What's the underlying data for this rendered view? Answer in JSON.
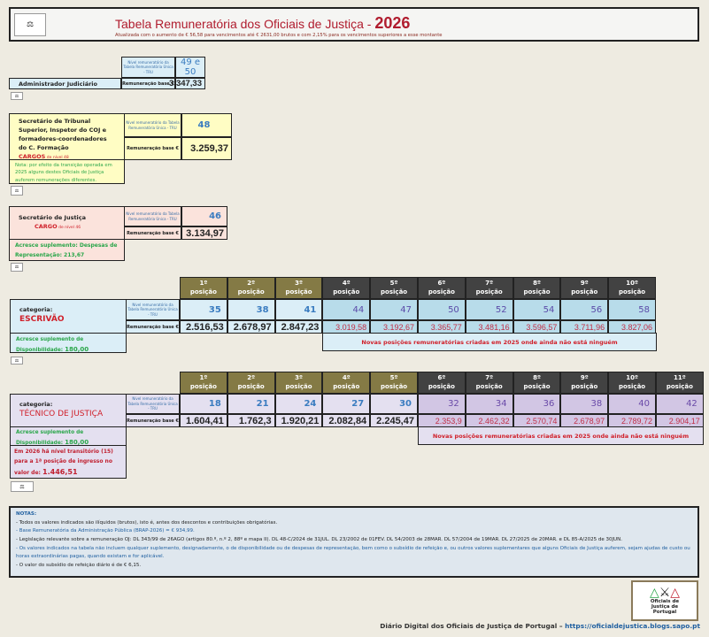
{
  "header": {
    "title": "Tabela Remuneratória dos Oficiais de Justiça - ",
    "year": "2026",
    "subtitle": "Atualizada com o aumento de € 56,58 para vencimentos até € 2631,00 brutos e com 2,15% para os vencimentos superiores a esse montante"
  },
  "labels": {
    "tru": "Nível remuneratório da Tabela Remuneratória Única - TRU",
    "base": "Remuneração base €",
    "posicao": "posição",
    "categoria": "categoria:"
  },
  "admin": {
    "name": "Administrador Judiciário",
    "level": "49 e 50",
    "value": "3.347,33"
  },
  "sts": {
    "name": "Secretário de Tribunal Superior, Inspetor do COJ e formadores-coordenadores do C. Formação",
    "cargo": "CARGOS",
    "cargo_suffix": " de nível 48",
    "level": "48",
    "value": "3.259,37",
    "note": "Nota: por efeito da transição operada em 2025 alguns destes Oficiais de Justiça auferem remunerações diferentes."
  },
  "sj": {
    "name": "Secretário de Justiça",
    "cargo": "CARGO",
    "cargo_suffix": " de nível 46",
    "level": "46",
    "value": "3.134,97",
    "note": "Acresce suplemento: Despesas de Representação: 213,67"
  },
  "escrivao": {
    "category": "ESCRIVÃO",
    "note_prefix": "Acresce suplemento de Disponibilidade: ",
    "note_value": "180,00",
    "new_note": "Novas posições remuneratórias criadas em 2025 onde ainda não está ninguém",
    "positions": [
      {
        "n": "1º",
        "level": "35",
        "value": "2.516,53"
      },
      {
        "n": "2º",
        "level": "38",
        "value": "2.678,97"
      },
      {
        "n": "3º",
        "level": "41",
        "value": "2.847,23"
      },
      {
        "n": "4º",
        "level": "44",
        "value": "3.019,58"
      },
      {
        "n": "5º",
        "level": "47",
        "value": "3.192,67"
      },
      {
        "n": "6º",
        "level": "50",
        "value": "3.365,77"
      },
      {
        "n": "7º",
        "level": "52",
        "value": "3.481,16"
      },
      {
        "n": "8º",
        "level": "54",
        "value": "3.596,57"
      },
      {
        "n": "9º",
        "level": "56",
        "value": "3.711,96"
      },
      {
        "n": "10º",
        "level": "58",
        "value": "3.827,06"
      }
    ],
    "existing_count": 3
  },
  "tecnico": {
    "category": "TÉCNICO DE JUSTIÇA",
    "note_prefix": "Acresce suplemento de Disponibilidade: ",
    "note_value": "180,00",
    "transit_text": "Em 2026 há nível transitório (15) para a 1ª posição de ingresso no valor de: ",
    "transit_value": "1.446,51",
    "new_note": "Novas posições remuneratórias criadas em 2025 onde ainda não está ninguém",
    "positions": [
      {
        "n": "1º",
        "level": "18",
        "value": "1.604,41"
      },
      {
        "n": "2º",
        "level": "21",
        "value": "1.762,3"
      },
      {
        "n": "3º",
        "level": "24",
        "value": "1.920,21"
      },
      {
        "n": "4º",
        "level": "27",
        "value": "2.082,84"
      },
      {
        "n": "5º",
        "level": "30",
        "value": "2.245,47"
      },
      {
        "n": "6º",
        "level": "32",
        "value": "2.353,9"
      },
      {
        "n": "7º",
        "level": "34",
        "value": "2.462,32"
      },
      {
        "n": "8º",
        "level": "36",
        "value": "2.570,74"
      },
      {
        "n": "9º",
        "level": "38",
        "value": "2.678,97"
      },
      {
        "n": "10º",
        "level": "40",
        "value": "2.789,72"
      },
      {
        "n": "11º",
        "level": "42",
        "value": "2.904,17"
      }
    ],
    "existing_count": 5
  },
  "notas": {
    "title": "NOTAS:",
    "items": [
      "- Todos os valores indicados são ilíquidos (brutos), isto é, antes dos descontos e contribuições obrigatórias.",
      "- Base Remuneratória da Administração Pública (BRAP-2026) = € 934,99.",
      "- Legislação relevante sobre a remuneração OJ: DL 343/99 de 26AGO (artigos 80.º, n.º 2, 88º e mapa II). DL 48-C/2024 de 31JUL. DL 23/2002 de 01FEV. DL 54/2003 de 28MAR. DL 57/2004 de 19MAR. DL 27/2025 de 20MAR. e DL 85-A/2025 de 30JUN.",
      "- Os valores indicados na tabela não incluem qualquer suplemento, designadamente, o de disponibilidade ou de despesas de representação, bem como o subsídio de refeição e, ou outros valores suplementares que alguns Oficiais de Justiça auferem, sejam ajudas de custo ou horas extraordinárias pagas, quando existam e for aplicável.",
      "- O valor do subsídio de refeição diário é de € 6,15."
    ]
  },
  "logo": {
    "text": "Oficiais de Justiça de Portugal"
  },
  "footer": {
    "text": "Diário Digital dos Oficiais de Justiça de Portugal – ",
    "url": "https://oficialdejustica.blogs.sapo.pt"
  },
  "colors": {
    "title": "#b01c2e",
    "olive": "#847a45",
    "dark": "#424242",
    "green": "#2aa64a",
    "red": "#d0202a"
  }
}
